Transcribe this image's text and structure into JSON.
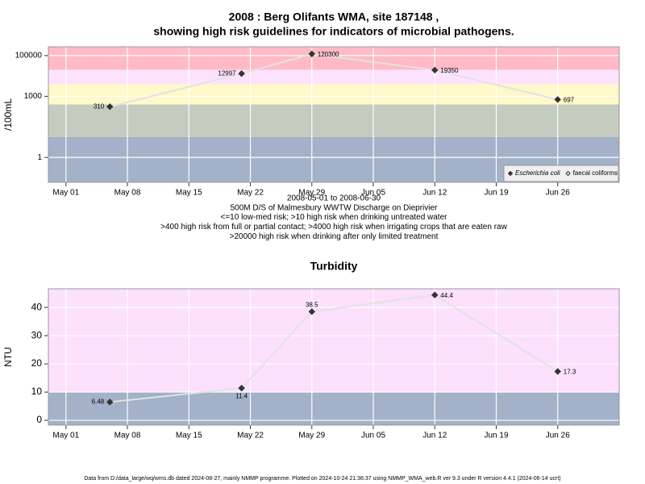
{
  "chart_data": [
    {
      "type": "line",
      "title": [
        "2008 : Berg Olifants WMA, site 187148 ,",
        "showing high risk guidelines for indicators of microbial pathogens."
      ],
      "ylabel": "/100mL",
      "notes": [
        "2008-05-01 to 2008-06-30",
        "500M D/S of Malmesbury WWTW Discharge on Dieprivier",
        "<=10 low-med risk; >10 high risk when drinking untreated water",
        ">400 high risk from full or partial contact; >4000 high risk when irrigating crops that are eaten raw",
        ">20000 high risk when drinking after only limited treatment"
      ],
      "x": [
        "May 06",
        "May 21",
        "May 29",
        "Jun 12",
        "Jun 26"
      ],
      "xlim": [
        "Apr 29",
        "Jul 03"
      ],
      "xticks": [
        "May 01",
        "May 08",
        "May 15",
        "May 22",
        "May 29",
        "Jun 05",
        "Jun 12",
        "Jun 19",
        "Jun 26"
      ],
      "log_y": true,
      "ylim": [
        0.06,
        270000
      ],
      "yticks": [
        1,
        1000,
        100000
      ],
      "grid": true,
      "band_edges": [
        10,
        400,
        4000,
        20000
      ],
      "band_colors": [
        "#a3b1c9",
        "#c4cbbf",
        "#fff8c8",
        "#fde2fd",
        "#ffbac6"
      ],
      "line_color": "#e2e2e2",
      "legend": "lower right",
      "series": [
        {
          "name": "Escherichia coli",
          "color": "#333333",
          "filled": true,
          "values": [
            310,
            12997,
            120300,
            19350,
            697
          ]
        },
        {
          "name": "faecal coliforms",
          "color": "#333333",
          "filled": false,
          "values": [
            null,
            null,
            null,
            null,
            null
          ]
        }
      ]
    },
    {
      "type": "line",
      "title": [
        "Turbidity"
      ],
      "ylabel": "NTU",
      "x": [
        "May 06",
        "May 21",
        "May 29",
        "Jun 12",
        "Jun 26"
      ],
      "xlim": [
        "Apr 29",
        "Jul 03"
      ],
      "xticks": [
        "May 01",
        "May 08",
        "May 15",
        "May 22",
        "May 29",
        "Jun 05",
        "Jun 12",
        "Jun 19",
        "Jun 26"
      ],
      "log_y": false,
      "ylim": [
        -1.7,
        46.6
      ],
      "yticks": [
        0,
        10,
        20,
        30,
        40
      ],
      "grid": true,
      "band_edges": [
        10
      ],
      "band_colors": [
        "#a3b1c9",
        "#fce0fc"
      ],
      "line_color": "#e2e2e2",
      "series": [
        {
          "name": "Turbidity",
          "color": "#333333",
          "filled": true,
          "values": [
            6.48,
            11.4,
            38.5,
            44.4,
            17.3
          ]
        }
      ]
    }
  ],
  "footer": "Data from D:/data_large/wq/wms.db dated 2024-08-27, mainly NMMP programme. Plotted on 2024-10-24 21:36:37 using NMMP_WMA_web.R ver 9.3 under R version 4.4.1 (2024-06-14 ucrt)"
}
